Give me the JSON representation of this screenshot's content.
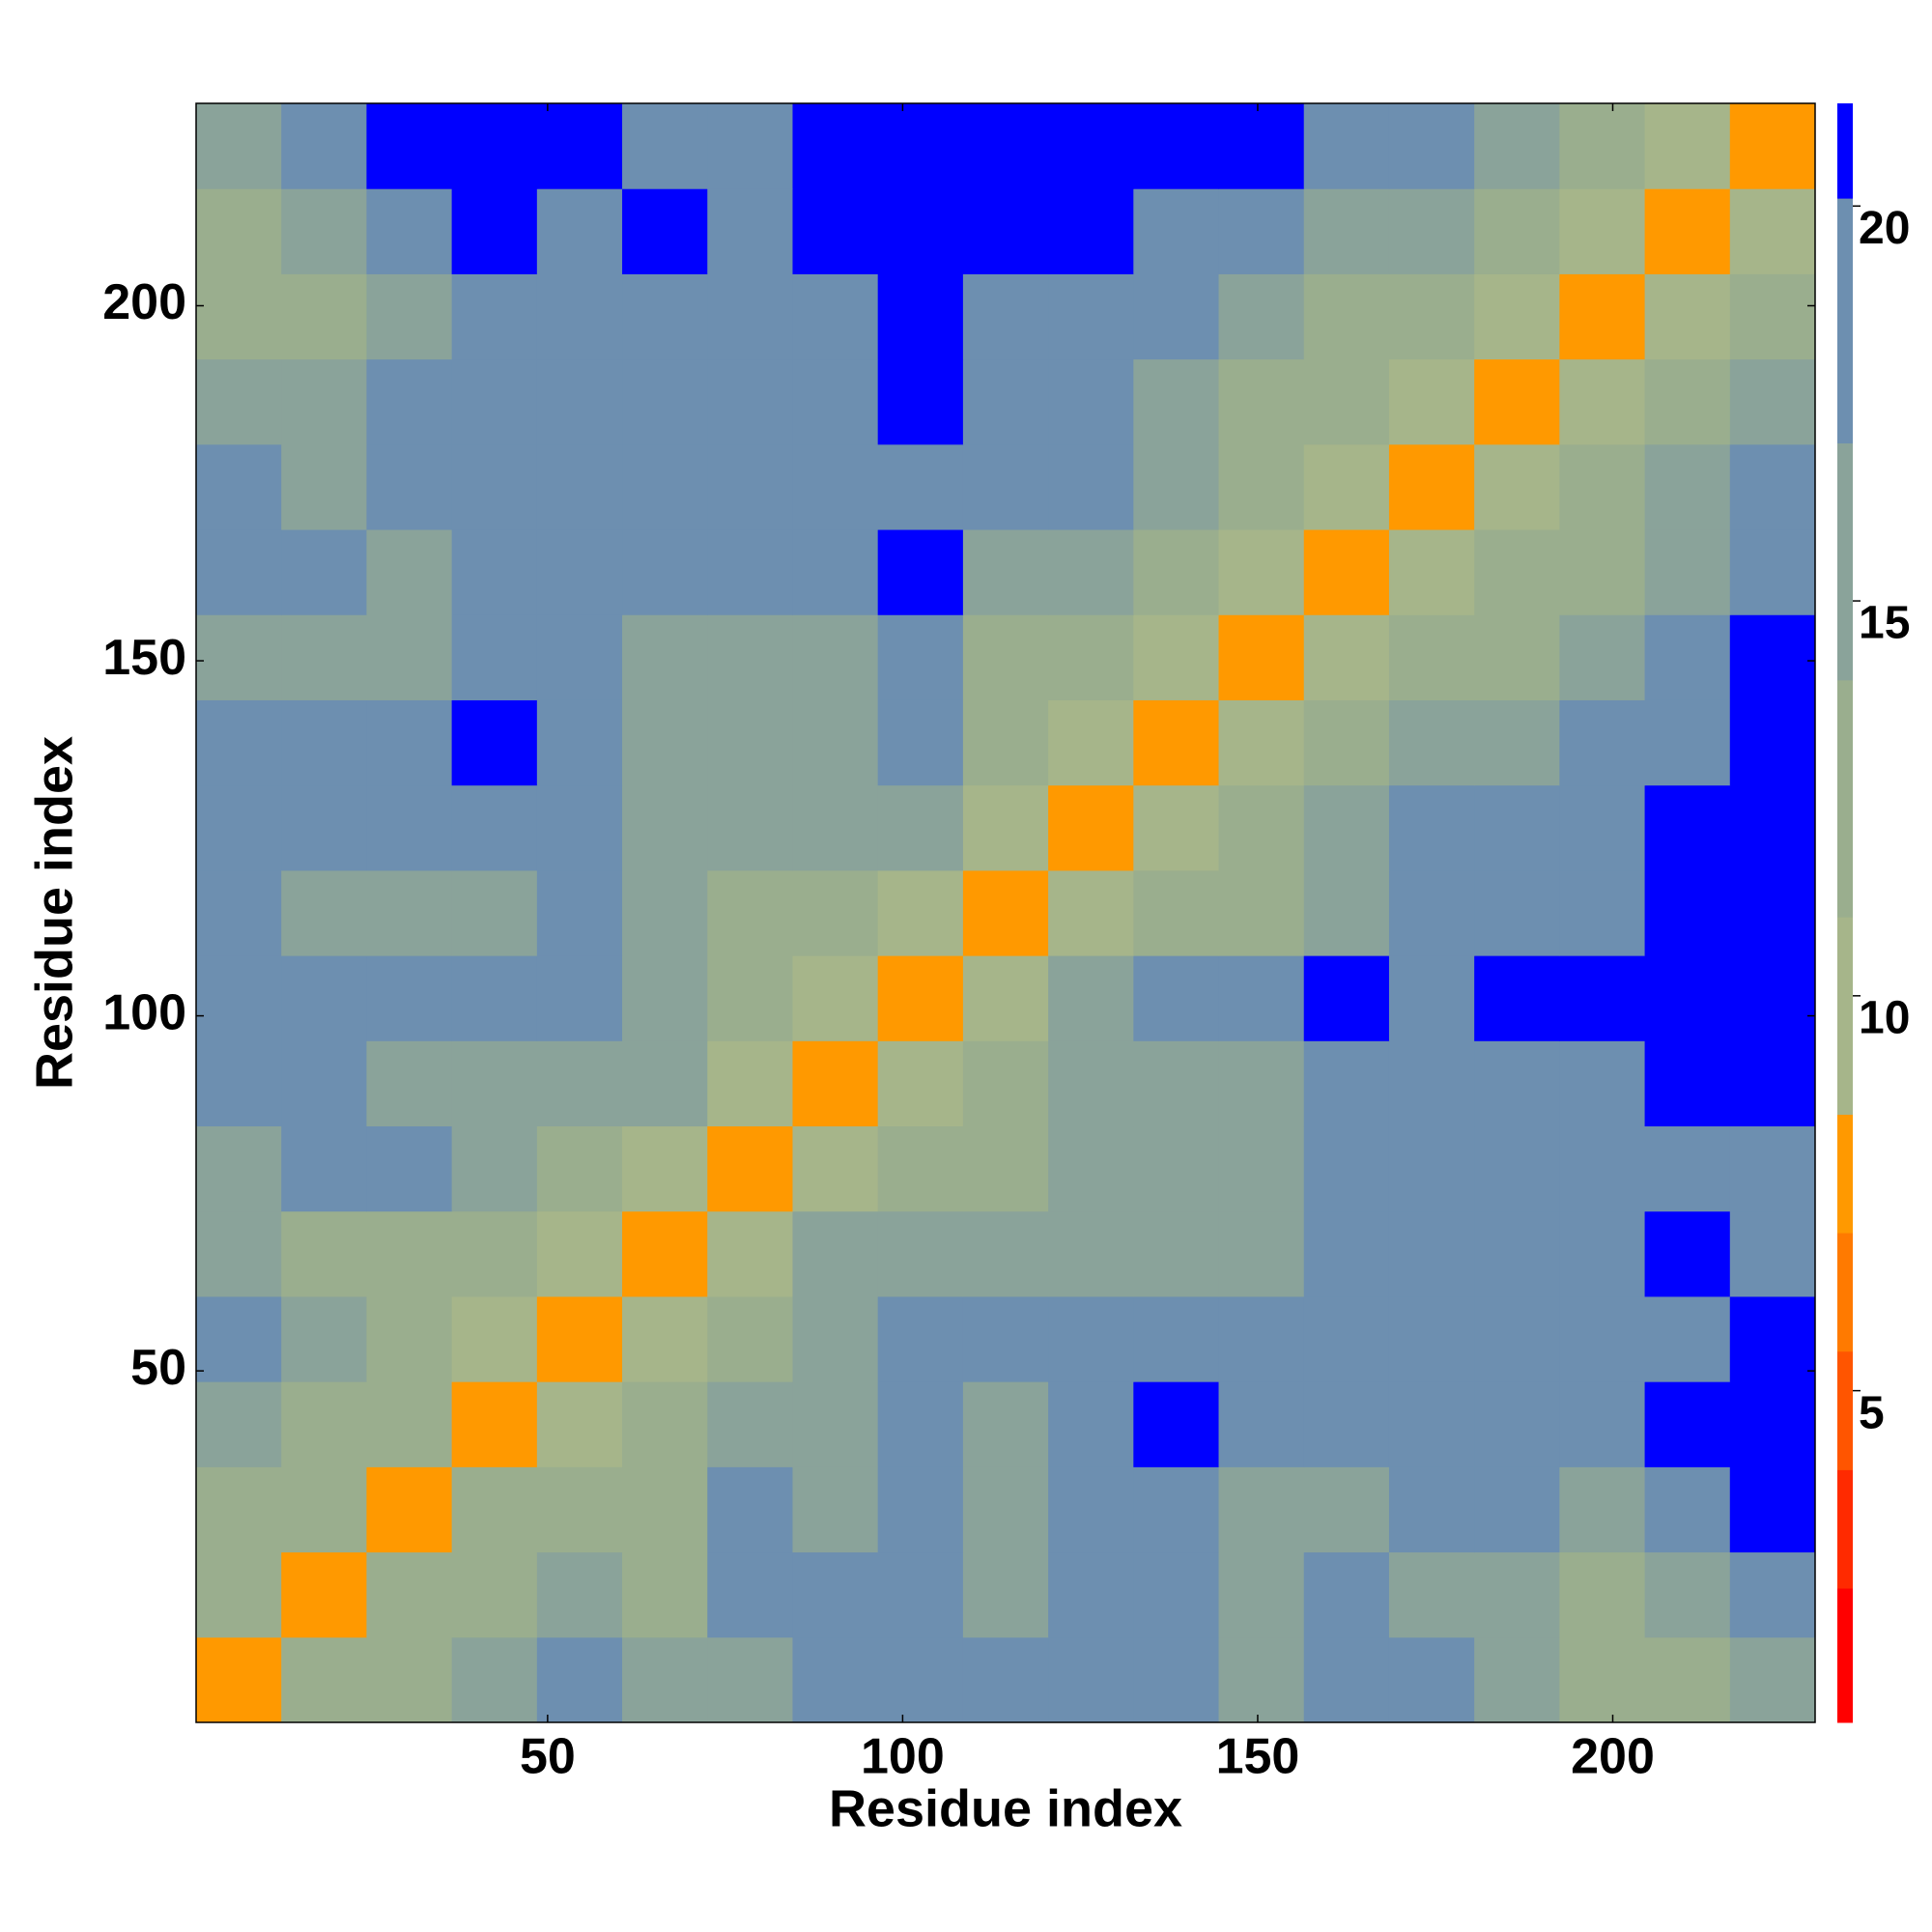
{
  "chart_data": {
    "type": "heatmap",
    "xlabel": "Residue index",
    "ylabel": "Residue index",
    "bins": [
      0.5,
      12.5,
      24.5,
      36.5,
      48.5,
      60.5,
      72.5,
      84.5,
      96.5,
      108.5,
      120.5,
      132.5,
      144.5,
      156.5,
      168.5,
      180.5,
      192.5,
      204.5,
      216.5,
      228.5
    ],
    "xlim": [
      0.5,
      228.5
    ],
    "ylim": [
      0.5,
      228.5
    ],
    "xticks": [
      50,
      100,
      150,
      200
    ],
    "yticks": [
      50,
      100,
      150,
      200
    ],
    "zlim": [
      0.8,
      21.3
    ],
    "zticks": [
      5,
      10,
      15,
      20
    ],
    "colorscale": {
      "bounds": [
        0.8,
        2.5,
        4,
        5.5,
        7,
        8.5,
        11,
        14,
        17,
        20.1
      ],
      "colors": [
        "#ff0000",
        "#ff2a00",
        "#ff5500",
        "#ff7a00",
        "#ff9900",
        "#a6b58a",
        "#9aae8e",
        "#8aa39a",
        "#6d8fb0",
        "#0000ff"
      ]
    },
    "values": [
      [
        7,
        12,
        13,
        15,
        17,
        14,
        16,
        17,
        19,
        17,
        20,
        19,
        16,
        19,
        17,
        15,
        13,
        13,
        15
      ],
      [
        12,
        7,
        11,
        13,
        16,
        13,
        17,
        17,
        20,
        15,
        20,
        19,
        16,
        17,
        16,
        16,
        13,
        15,
        19
      ],
      [
        13,
        11,
        7,
        11,
        13,
        13,
        17,
        16,
        19,
        15,
        19,
        20,
        15,
        16,
        18,
        17,
        16,
        20,
        21
      ],
      [
        15,
        13,
        11,
        7,
        10,
        12,
        16,
        15,
        18,
        16,
        20,
        21,
        17,
        19,
        19,
        19,
        20,
        21,
        21
      ],
      [
        17,
        16,
        13,
        10,
        7,
        10,
        13,
        15,
        17,
        18,
        19,
        19,
        17,
        20,
        20,
        20,
        19,
        20,
        21
      ],
      [
        14,
        13,
        13,
        12,
        10,
        7,
        10,
        14,
        16,
        14,
        16,
        16,
        15,
        19,
        19,
        20,
        19,
        21,
        20
      ],
      [
        16,
        17,
        17,
        16,
        13,
        10,
        7,
        10,
        12,
        11,
        14,
        16,
        14,
        18,
        18,
        20,
        19,
        20,
        20
      ],
      [
        17,
        17,
        16,
        15,
        15,
        14,
        10,
        7,
        10,
        13,
        16,
        15,
        15,
        17,
        19,
        19,
        19,
        21,
        21
      ],
      [
        19,
        20,
        19,
        18,
        17,
        16,
        12,
        10,
        7,
        10,
        14,
        18,
        17,
        21,
        20,
        21,
        21,
        21,
        21
      ],
      [
        17,
        15,
        15,
        16,
        18,
        14,
        11,
        13,
        10,
        7,
        10,
        12,
        11,
        15,
        17,
        19,
        18,
        21,
        21
      ],
      [
        20,
        20,
        19,
        20,
        19,
        16,
        14,
        16,
        14,
        10,
        7,
        10,
        12,
        16,
        18,
        20,
        20,
        21,
        21
      ],
      [
        19,
        19,
        20,
        21,
        19,
        16,
        16,
        15,
        18,
        12,
        10,
        7,
        10,
        13,
        15,
        16,
        18,
        20,
        21
      ],
      [
        16,
        16,
        15,
        17,
        17,
        15,
        14,
        15,
        17,
        11,
        12,
        10,
        7,
        10,
        12,
        13,
        15,
        18,
        21
      ],
      [
        19,
        17,
        16,
        19,
        20,
        19,
        18,
        17,
        21,
        15,
        16,
        13,
        10,
        7,
        10,
        12,
        13,
        16,
        20
      ],
      [
        17,
        16,
        18,
        19,
        20,
        19,
        18,
        19,
        20,
        17,
        18,
        15,
        12,
        10,
        7,
        10,
        12,
        14,
        18
      ],
      [
        15,
        16,
        17,
        19,
        20,
        20,
        20,
        19,
        21,
        19,
        20,
        16,
        13,
        12,
        10,
        7,
        10,
        12,
        15
      ],
      [
        13,
        13,
        16,
        20,
        19,
        19,
        19,
        19,
        21,
        18,
        20,
        18,
        15,
        13,
        12,
        10,
        7,
        10,
        12
      ],
      [
        13,
        15,
        20,
        21,
        20,
        21,
        20,
        21,
        21,
        21,
        21,
        20,
        18,
        16,
        14,
        12,
        10,
        7,
        10
      ],
      [
        15,
        19,
        21,
        21,
        21,
        20,
        20,
        21,
        21,
        21,
        21,
        21,
        21,
        20,
        18,
        15,
        12,
        10,
        7
      ]
    ]
  }
}
